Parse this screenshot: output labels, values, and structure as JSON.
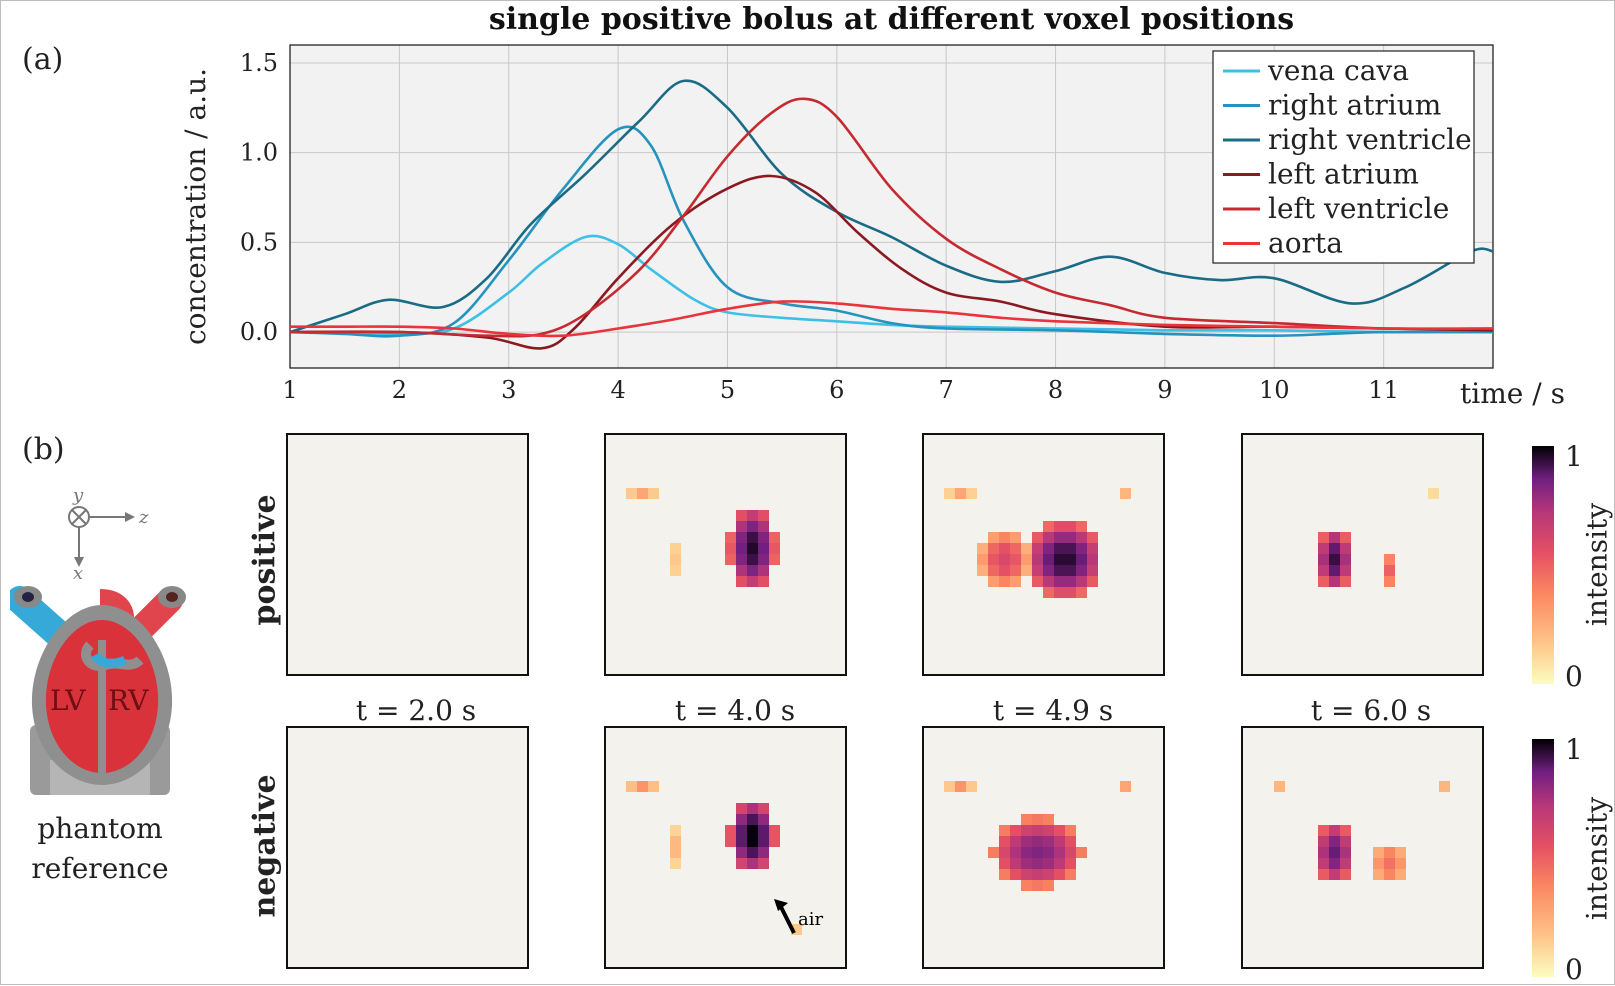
{
  "figure": {
    "panel_a_label": "(a)",
    "panel_b_label": "(b)",
    "row_positive": "positive",
    "row_negative": "negative",
    "time_labels": [
      "t = 2.0 s",
      "t = 4.0 s",
      "t = 4.9 s",
      "t = 6.0 s"
    ],
    "phantom_caption_1": "phantom",
    "phantom_caption_2": "reference",
    "phantom_lv": "LV",
    "phantom_rv": "RV",
    "axis_x_letter": "x",
    "axis_y_letter": "y",
    "axis_z_letter": "z",
    "colorbar_label": "intensity",
    "colorbar_ticks": [
      "1",
      "0"
    ],
    "annotation_air": "air"
  },
  "chart_data": {
    "type": "line",
    "title": "single positive bolus at different voxel positions",
    "xlabel": "time / s",
    "ylabel": "concentration / a.u.",
    "xlim": [
      1,
      12
    ],
    "ylim": [
      -0.2,
      1.6
    ],
    "xticks": [
      1,
      2,
      3,
      4,
      5,
      6,
      7,
      8,
      9,
      10,
      11
    ],
    "yticks": [
      0.0,
      0.5,
      1.0,
      1.5
    ],
    "ytick_labels": [
      "0.0",
      "0.5",
      "1.0",
      "1.5"
    ],
    "grid": true,
    "legend_position": "top-right",
    "series": [
      {
        "name": "vena cava",
        "color": "#3ec0e6",
        "x": [
          1.0,
          1.5,
          2.0,
          2.5,
          3.0,
          3.3,
          3.7,
          4.0,
          4.3,
          4.7,
          5.0,
          5.5,
          6.0,
          6.5,
          7.0,
          8.0,
          9.0,
          10.0,
          11.0,
          12.0
        ],
        "y": [
          0.0,
          0.0,
          -0.01,
          0.02,
          0.22,
          0.38,
          0.53,
          0.49,
          0.35,
          0.18,
          0.11,
          0.08,
          0.06,
          0.04,
          0.03,
          0.02,
          0.01,
          0.01,
          0.0,
          0.0
        ]
      },
      {
        "name": "right atrium",
        "color": "#2593bd",
        "x": [
          1.0,
          1.5,
          2.0,
          2.5,
          3.0,
          3.5,
          4.0,
          4.3,
          4.6,
          5.0,
          5.5,
          6.0,
          6.5,
          7.0,
          8.0,
          9.0,
          10.0,
          10.5,
          11.0,
          12.0
        ],
        "y": [
          0.0,
          -0.01,
          -0.02,
          0.05,
          0.4,
          0.8,
          1.13,
          1.04,
          0.62,
          0.25,
          0.16,
          0.12,
          0.05,
          0.02,
          0.01,
          -0.01,
          -0.02,
          -0.01,
          0.0,
          0.0
        ]
      },
      {
        "name": "right ventricle",
        "color": "#1a6b85",
        "x": [
          1.0,
          1.5,
          1.9,
          2.4,
          2.8,
          3.2,
          3.7,
          4.2,
          4.6,
          5.0,
          5.5,
          6.0,
          6.5,
          7.0,
          7.5,
          8.0,
          8.5,
          9.0,
          9.5,
          10.0,
          10.7,
          11.2,
          11.8,
          12.0
        ],
        "y": [
          0.0,
          0.1,
          0.18,
          0.14,
          0.3,
          0.6,
          0.88,
          1.18,
          1.4,
          1.25,
          0.88,
          0.67,
          0.53,
          0.37,
          0.28,
          0.34,
          0.42,
          0.33,
          0.29,
          0.3,
          0.16,
          0.25,
          0.45,
          0.45
        ]
      },
      {
        "name": "left atrium",
        "color": "#8b1a20",
        "x": [
          1.0,
          2.0,
          2.8,
          3.3,
          3.6,
          4.0,
          4.5,
          5.0,
          5.4,
          5.8,
          6.2,
          6.6,
          7.0,
          7.5,
          8.0,
          9.0,
          10.0,
          11.0,
          12.0
        ],
        "y": [
          0.0,
          0.0,
          -0.03,
          -0.09,
          0.02,
          0.3,
          0.6,
          0.8,
          0.87,
          0.78,
          0.55,
          0.35,
          0.22,
          0.17,
          0.1,
          0.03,
          0.03,
          0.02,
          0.01
        ]
      },
      {
        "name": "left ventricle",
        "color": "#c42a30",
        "x": [
          1.0,
          2.0,
          2.8,
          3.3,
          3.7,
          4.2,
          4.6,
          5.0,
          5.4,
          5.7,
          6.0,
          6.5,
          7.0,
          7.5,
          8.0,
          8.5,
          9.0,
          10.0,
          11.0,
          12.0
        ],
        "y": [
          0.0,
          0.0,
          -0.02,
          -0.01,
          0.1,
          0.35,
          0.65,
          0.98,
          1.22,
          1.3,
          1.2,
          0.8,
          0.52,
          0.35,
          0.22,
          0.15,
          0.08,
          0.05,
          0.02,
          0.02
        ]
      },
      {
        "name": "aorta",
        "color": "#e8343a",
        "x": [
          1.0,
          1.5,
          2.0,
          2.5,
          3.0,
          3.5,
          4.0,
          4.5,
          5.0,
          5.5,
          6.0,
          6.5,
          7.0,
          7.5,
          8.0,
          9.0,
          10.0,
          11.0,
          12.0
        ],
        "y": [
          0.03,
          0.03,
          0.03,
          0.02,
          -0.01,
          -0.02,
          0.02,
          0.07,
          0.13,
          0.17,
          0.16,
          0.13,
          0.11,
          0.08,
          0.06,
          0.04,
          0.03,
          0.02,
          0.02
        ]
      }
    ]
  }
}
